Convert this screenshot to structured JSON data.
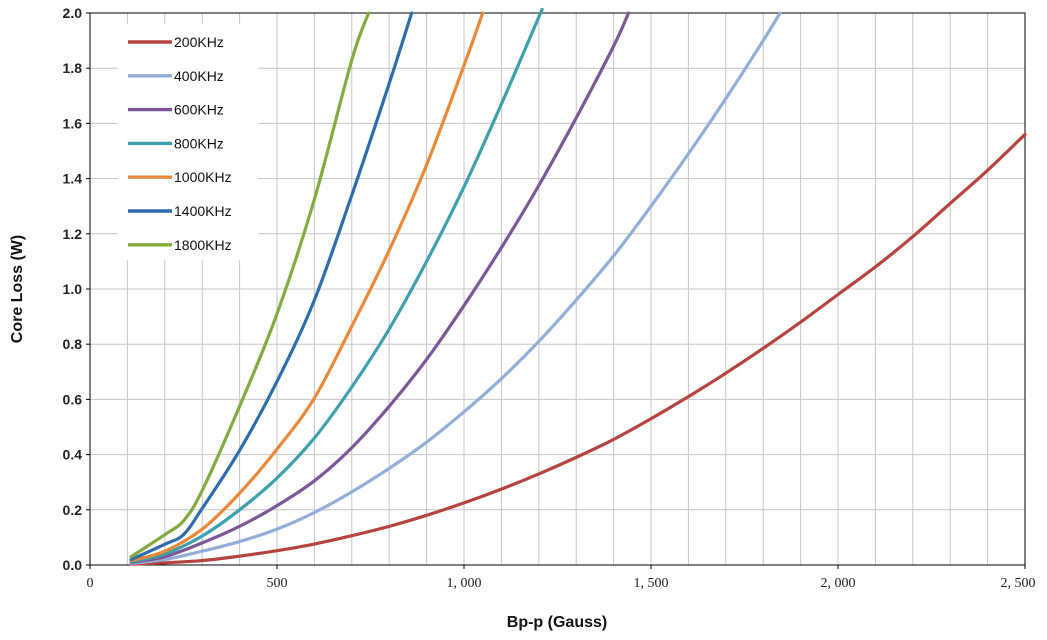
{
  "chart_data": {
    "type": "line",
    "title": "",
    "xlabel": "Bp-p (Gauss)",
    "ylabel": "Core Loss (W)",
    "xlim": [
      0,
      2500
    ],
    "ylim": [
      0,
      2.0
    ],
    "x_ticks": [
      0,
      500,
      1000,
      1500,
      2000,
      2500
    ],
    "x_tick_labels": [
      "0",
      "500",
      "1, 000",
      "1, 500",
      "2, 000",
      "2, 500"
    ],
    "y_ticks": [
      0,
      0.2,
      0.4,
      0.6,
      0.8,
      1.0,
      1.2,
      1.4,
      1.6,
      1.8,
      2.0
    ],
    "y_tick_labels": [
      "0.0",
      "0.2",
      "0.4",
      "0.6",
      "0.8",
      "1.0",
      "1.2",
      "1.4",
      "1.6",
      "1.8",
      "2.0"
    ],
    "x_minor_step": 100,
    "grid": true,
    "legend_position": "top-left",
    "series": [
      {
        "name": "200KHz",
        "color": "#b5433f",
        "points": [
          [
            110,
            0.003
          ],
          [
            200,
            0.008
          ],
          [
            300,
            0.016
          ],
          [
            400,
            0.032
          ],
          [
            500,
            0.052
          ],
          [
            600,
            0.076
          ],
          [
            700,
            0.106
          ],
          [
            800,
            0.14
          ],
          [
            900,
            0.18
          ],
          [
            1000,
            0.225
          ],
          [
            1100,
            0.275
          ],
          [
            1200,
            0.33
          ],
          [
            1300,
            0.39
          ],
          [
            1400,
            0.455
          ],
          [
            1500,
            0.53
          ],
          [
            1600,
            0.61
          ],
          [
            1700,
            0.695
          ],
          [
            1800,
            0.785
          ],
          [
            1900,
            0.88
          ],
          [
            2000,
            0.98
          ],
          [
            2100,
            1.08
          ],
          [
            2200,
            1.19
          ],
          [
            2300,
            1.31
          ],
          [
            2400,
            1.43
          ],
          [
            2500,
            1.56
          ]
        ]
      },
      {
        "name": "400KHz",
        "color": "#93aed6",
        "points": [
          [
            110,
            0.006
          ],
          [
            200,
            0.02
          ],
          [
            300,
            0.05
          ],
          [
            400,
            0.085
          ],
          [
            500,
            0.13
          ],
          [
            600,
            0.19
          ],
          [
            700,
            0.265
          ],
          [
            800,
            0.35
          ],
          [
            900,
            0.445
          ],
          [
            1000,
            0.555
          ],
          [
            1100,
            0.675
          ],
          [
            1200,
            0.81
          ],
          [
            1300,
            0.96
          ],
          [
            1400,
            1.12
          ],
          [
            1500,
            1.3
          ],
          [
            1600,
            1.49
          ],
          [
            1700,
            1.69
          ],
          [
            1800,
            1.9
          ],
          [
            1845,
            2.0
          ]
        ]
      },
      {
        "name": "600KHz",
        "color": "#7a5896",
        "points": [
          [
            110,
            0.01
          ],
          [
            200,
            0.03
          ],
          [
            300,
            0.08
          ],
          [
            400,
            0.14
          ],
          [
            500,
            0.215
          ],
          [
            600,
            0.305
          ],
          [
            700,
            0.425
          ],
          [
            800,
            0.575
          ],
          [
            900,
            0.745
          ],
          [
            1000,
            0.94
          ],
          [
            1100,
            1.15
          ],
          [
            1200,
            1.375
          ],
          [
            1300,
            1.62
          ],
          [
            1400,
            1.88
          ],
          [
            1440,
            2.0
          ]
        ]
      },
      {
        "name": "800KHz",
        "color": "#3e9fad",
        "points": [
          [
            110,
            0.013
          ],
          [
            200,
            0.04
          ],
          [
            300,
            0.105
          ],
          [
            400,
            0.2
          ],
          [
            500,
            0.315
          ],
          [
            600,
            0.46
          ],
          [
            700,
            0.645
          ],
          [
            800,
            0.855
          ],
          [
            900,
            1.1
          ],
          [
            1000,
            1.37
          ],
          [
            1100,
            1.67
          ],
          [
            1200,
            1.985
          ],
          [
            1205,
            2.0
          ]
        ]
      },
      {
        "name": "1000KHz",
        "color": "#e8893a",
        "points": [
          [
            110,
            0.016
          ],
          [
            200,
            0.05
          ],
          [
            300,
            0.13
          ],
          [
            400,
            0.26
          ],
          [
            500,
            0.42
          ],
          [
            600,
            0.605
          ],
          [
            700,
            0.865
          ],
          [
            800,
            1.14
          ],
          [
            900,
            1.45
          ],
          [
            1000,
            1.81
          ],
          [
            1050,
            2.0
          ]
        ]
      },
      {
        "name": "1400KHz",
        "color": "#2f6cab",
        "points": [
          [
            110,
            0.02
          ],
          [
            200,
            0.075
          ],
          [
            250,
            0.11
          ],
          [
            300,
            0.205
          ],
          [
            400,
            0.415
          ],
          [
            500,
            0.665
          ],
          [
            600,
            0.96
          ],
          [
            700,
            1.34
          ],
          [
            800,
            1.745
          ],
          [
            860,
            2.0
          ]
        ]
      },
      {
        "name": "1800KHz",
        "color": "#82aa40",
        "points": [
          [
            110,
            0.03
          ],
          [
            200,
            0.11
          ],
          [
            250,
            0.16
          ],
          [
            300,
            0.27
          ],
          [
            400,
            0.575
          ],
          [
            500,
            0.91
          ],
          [
            600,
            1.325
          ],
          [
            700,
            1.83
          ],
          [
            745,
            2.0
          ]
        ]
      }
    ]
  }
}
